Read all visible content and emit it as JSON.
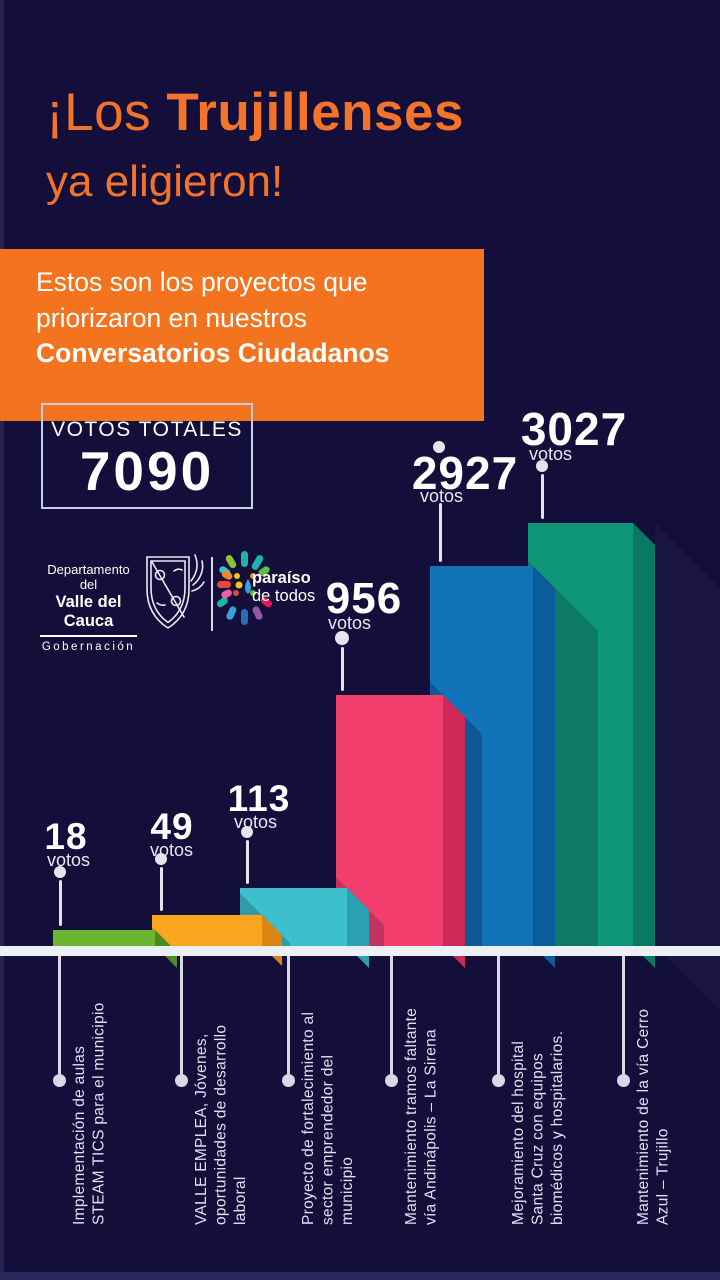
{
  "page": {
    "background": "#130E3A",
    "accent_orange": "#F3732B",
    "axis_color": "#EDEFF6"
  },
  "title": {
    "prefix": "¡Los",
    "highlight": "Trujillenses",
    "line2": "ya eligieron!"
  },
  "banner": {
    "bg": "#F4731E",
    "line1": "Estos son los proyectos que",
    "line2": "priorizaron en nuestros",
    "bold_line": "Conversatorios Ciudadanos"
  },
  "totals": {
    "label": "VOTOS TOTALES",
    "value": "7090"
  },
  "logos": {
    "gobernacion": {
      "line1": "Departamento del",
      "line2": "Valle del Cauca",
      "line3": "Gobernación"
    },
    "paraiso": {
      "line1": "paraíso",
      "line2": "de todos",
      "palette": [
        "#20B2AA",
        "#5DBB46",
        "#8BC53F",
        "#F5C51C",
        "#F5881F",
        "#E8453C",
        "#E8175D",
        "#EC5FA8",
        "#8E5BA6",
        "#2D6CB5",
        "#38A1DB",
        "#35C4D7"
      ]
    }
  },
  "chart_data": {
    "type": "bar",
    "title": "Estos son los proyectos que priorizaron en nuestros Conversatorios Ciudadanos",
    "units_label": "votos",
    "total_label": "VOTOS TOTALES",
    "total": 7090,
    "categories": [
      "Implementación de aulas STEAM TICS para el municipio",
      "VALLE EMPLEA, Jóvenes, oportunidades de desarrollo laboral",
      "Proyecto de fortalecimiento al sector emprendedor del municipio",
      "Mantenimiento tramos faltante vía Andinápolis – La Sirena",
      "Mejoramiento del hospital Santa Cruz con equipos biomédicos y hospitalarios.",
      "Mantenimiento de la vía Cerro Azul – Trujillo"
    ],
    "values": [
      18,
      49,
      113,
      956,
      2927,
      3027
    ],
    "bar_colors": [
      "#6CB52F",
      "#F9A51D",
      "#3EBFCE",
      "#F23E6D",
      "#1173B8",
      "#0E9678"
    ],
    "bar_dark_colors": [
      "#4A8C1F",
      "#D8860F",
      "#2AA0B2",
      "#CE2858",
      "#0B5C9B",
      "#097A61"
    ],
    "bars": [
      {
        "value": "18",
        "color": "#6CB52F",
        "dark": "#4A8C1F",
        "label_lines": [
          "Implementación de aulas",
          "STEAM TICS para el municipio"
        ]
      },
      {
        "value": "49",
        "color": "#F9A51D",
        "dark": "#D8860F",
        "label_lines": [
          "VALLE EMPLEA, Jóvenes,",
          "oportunidades de desarrollo",
          "laboral"
        ]
      },
      {
        "value": "113",
        "color": "#3EBFCE",
        "dark": "#2AA0B2",
        "label_lines": [
          "Proyecto de fortalecimiento al",
          "sector emprendedor del",
          "municipio"
        ]
      },
      {
        "value": "956",
        "color": "#F23E6D",
        "dark": "#CE2858",
        "label_lines": [
          "Mantenimiento tramos faltante",
          "vía Andinápolis – La Sirena"
        ]
      },
      {
        "value": "2927",
        "color": "#1173B8",
        "dark": "#0B5C9B",
        "label_lines": [
          "Mejoramiento del hospital",
          "Santa Cruz con equipos",
          "biomédicos y hospitalarios."
        ]
      },
      {
        "value": "3027",
        "color": "#0E9678",
        "dark": "#097A61",
        "label_lines": [
          "Mantenimiento de la vía Cerro",
          "Azul – Trujillo"
        ]
      }
    ]
  }
}
